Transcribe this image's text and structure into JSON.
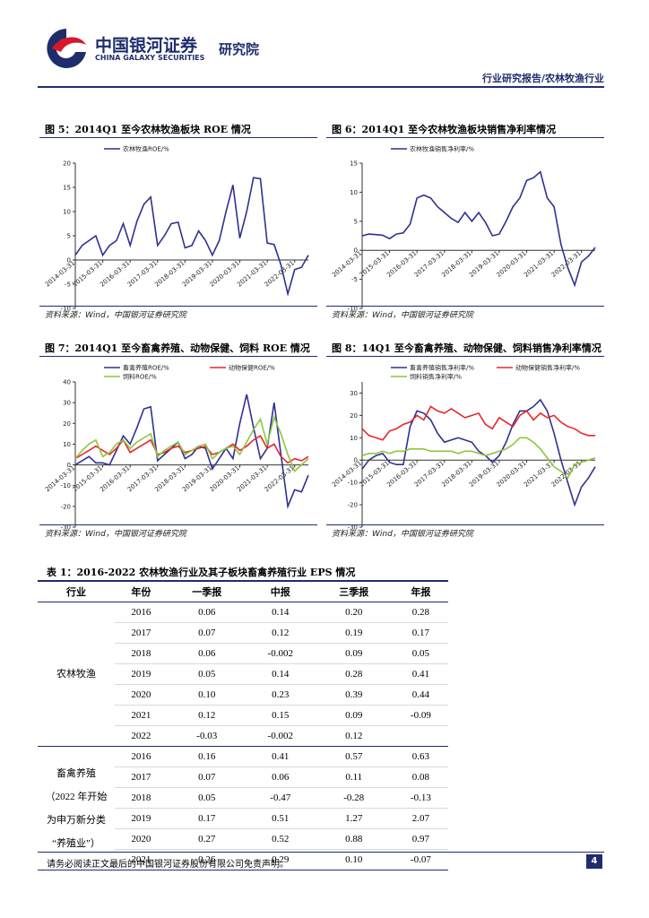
{
  "header": {
    "logo_cn": "中国银河证券",
    "logo_en": "CHINA GALAXY SECURITIES",
    "dept": "研究院",
    "section": "行业研究报告/农林牧渔行业"
  },
  "chart_data": [
    {
      "type": "line",
      "title": "图 5：2014Q1 至今农林牧渔板块 ROE 情况",
      "source": "资料来源：Wind，中国银河证券研究院",
      "categories": [
        "2014-03-31",
        null,
        null,
        null,
        "2015-03-31",
        null,
        null,
        null,
        "2016-03-31",
        null,
        null,
        null,
        "2017-03-31",
        null,
        null,
        null,
        "2018-03-31",
        null,
        null,
        null,
        "2019-03-31",
        null,
        null,
        null,
        "2020-03-31",
        null,
        null,
        null,
        "2021-03-31",
        null,
        null,
        null,
        "2022-03-31",
        null,
        null
      ],
      "series": [
        {
          "name": "农林牧渔ROE/%",
          "color": "#2e3192",
          "values": [
            1,
            3,
            4,
            5,
            1,
            3,
            4,
            7.5,
            3,
            8,
            11.5,
            13,
            3,
            5,
            7.5,
            7.8,
            2.5,
            3,
            6,
            4,
            1,
            4,
            10,
            15.5,
            4.5,
            10,
            17,
            16.8,
            3.5,
            3.2,
            -1,
            -7,
            -2,
            -1.5,
            1
          ]
        }
      ],
      "ylim": [
        -10,
        20
      ],
      "yticks": [
        -10,
        -5,
        0,
        5,
        10,
        15,
        20
      ]
    },
    {
      "type": "line",
      "title": "图 6：2014Q1 至今农林牧渔板块销售净利率情况",
      "source": "资料来源：Wind，中国银河证券研究院",
      "categories": [
        "2014-03-31",
        null,
        null,
        null,
        "2015-03-31",
        null,
        null,
        null,
        "2016-03-31",
        null,
        null,
        null,
        "2017-03-31",
        null,
        null,
        null,
        "2018-03-31",
        null,
        null,
        null,
        "2019-03-31",
        null,
        null,
        null,
        "2020-03-31",
        null,
        null,
        null,
        "2021-03-31",
        null,
        null,
        null,
        "2022-03-31",
        null,
        null
      ],
      "series": [
        {
          "name": "农林牧渔销售净利率/%",
          "color": "#2e3192",
          "values": [
            2.5,
            2.8,
            2.7,
            2.6,
            2,
            2.8,
            3,
            4.5,
            9,
            9.5,
            9,
            7.5,
            6.5,
            5.5,
            4.8,
            6.5,
            5,
            6.5,
            4.8,
            2.5,
            2.8,
            5,
            7.5,
            9,
            12,
            12.5,
            13.5,
            9,
            7.5,
            1,
            -3,
            -6,
            -2,
            -1,
            0.5
          ]
        }
      ],
      "ylim": [
        -10,
        15
      ],
      "yticks": [
        -10,
        -5,
        0,
        5,
        10,
        15
      ]
    },
    {
      "type": "line",
      "title": "图 7：2014Q1 至今畜禽养殖、动物保健、饲料 ROE 情况",
      "source": "资料来源：Wind，中国银河证券研究院",
      "categories": [
        "2014-03-31",
        null,
        null,
        null,
        "2015-03-31",
        null,
        null,
        null,
        "2016-03-31",
        null,
        null,
        null,
        "2017-03-31",
        null,
        null,
        null,
        "2018-03-31",
        null,
        null,
        null,
        "2019-03-31",
        null,
        null,
        null,
        "2020-03-31",
        null,
        null,
        null,
        "2021-03-31",
        null,
        null,
        null,
        "2022-03-31",
        null,
        null
      ],
      "series": [
        {
          "name": "畜禽养殖ROE/%",
          "color": "#2e3192",
          "values": [
            0,
            2,
            4,
            1,
            1,
            0,
            7,
            14,
            10,
            18,
            27,
            28,
            2,
            5,
            8,
            11,
            3,
            5,
            9,
            8,
            -2,
            3,
            8,
            3,
            20,
            34,
            18,
            3,
            8,
            30,
            5,
            -20,
            -12,
            -13,
            -5
          ]
        },
        {
          "name": "动物保健ROE/%",
          "color": "#e8262a",
          "values": [
            3,
            5,
            7,
            9,
            7,
            5,
            8,
            12,
            6,
            8,
            10,
            12,
            5,
            6,
            8,
            9,
            6,
            7,
            8,
            9,
            5,
            6,
            8,
            10,
            7,
            9,
            12,
            14,
            8,
            10,
            4,
            1,
            3,
            2,
            4
          ]
        },
        {
          "name": "饲料ROE/%",
          "color": "#8dc63f",
          "values": [
            3,
            7,
            10,
            12,
            4,
            6,
            10,
            12,
            8,
            11,
            13,
            15,
            4,
            7,
            9,
            11,
            5,
            7,
            9,
            10,
            3,
            6,
            8,
            9,
            5,
            11,
            17,
            22,
            10,
            23,
            15,
            5,
            -3,
            0,
            3
          ]
        }
      ],
      "ylim": [
        -30,
        40
      ],
      "yticks": [
        -30,
        -20,
        -10,
        0,
        10,
        20,
        30,
        40
      ]
    },
    {
      "type": "line",
      "title": "图 8：14Q1 至今畜禽养殖、动物保健、饲料销售净利率情况",
      "source": "资料来源：Wind，中国银河证券研究院",
      "categories": [
        "2014-03-31",
        null,
        null,
        null,
        "2015-03-31",
        null,
        null,
        null,
        "2016-03-31",
        null,
        null,
        null,
        "2017-03-31",
        null,
        null,
        null,
        "2018-03-31",
        null,
        null,
        null,
        "2019-03-31",
        null,
        null,
        null,
        "2020-03-31",
        null,
        null,
        null,
        "2021-03-31",
        null,
        null,
        null,
        "2022-03-31",
        null,
        null
      ],
      "series": [
        {
          "name": "畜禽养殖销售净利率/%",
          "color": "#2e3192",
          "values": [
            -4,
            0,
            2,
            3,
            -1,
            -2,
            -2,
            15,
            22,
            21,
            18,
            12,
            8,
            9,
            10,
            9,
            8,
            4,
            2,
            -1,
            2,
            8,
            16,
            22,
            22,
            24,
            27,
            22,
            12,
            0,
            -10,
            -20,
            -12,
            -8,
            -3
          ]
        },
        {
          "name": "动物保健销售净利率/%",
          "color": "#e8262a",
          "values": [
            14,
            11,
            10,
            9,
            13,
            14,
            16,
            17,
            20,
            18,
            24,
            22,
            21,
            23,
            21,
            19,
            20,
            21,
            16,
            14,
            19,
            17,
            15,
            20,
            22,
            18,
            21,
            19,
            20,
            17,
            15,
            14,
            12,
            11,
            11
          ]
        },
        {
          "name": "饲料销售净利率/%",
          "color": "#8dc63f",
          "values": [
            2,
            3,
            3,
            4,
            3,
            4,
            4,
            5,
            5,
            5,
            4,
            4,
            4,
            4,
            3,
            4,
            4,
            3,
            2,
            3,
            4,
            5,
            7,
            10,
            10,
            8,
            5,
            1,
            -3,
            -5,
            -8,
            -2,
            -1,
            0,
            1
          ]
        }
      ],
      "ylim": [
        -30,
        35
      ],
      "yticks": [
        -30,
        -20,
        -10,
        0,
        10,
        20,
        30
      ]
    }
  ],
  "table": {
    "title": "表 1：2016-2022 农林牧渔行业及其子板块畜禽养殖行业 EPS 情况",
    "header": [
      "行业",
      "年份",
      "一季报",
      "中报",
      "三季报",
      "年报"
    ],
    "groups": [
      {
        "label": [
          "农林牧渔"
        ],
        "rows": [
          [
            "2016",
            "0.06",
            "0.14",
            "0.20",
            "0.28"
          ],
          [
            "2017",
            "0.07",
            "0.12",
            "0.19",
            "0.17"
          ],
          [
            "2018",
            "0.06",
            "-0.002",
            "0.09",
            "0.05"
          ],
          [
            "2019",
            "0.05",
            "0.14",
            "0.28",
            "0.41"
          ],
          [
            "2020",
            "0.10",
            "0.23",
            "0.39",
            "0.44"
          ],
          [
            "2021",
            "0.12",
            "0.15",
            "0.09",
            "-0.09"
          ],
          [
            "2022",
            "-0.03",
            "-0.002",
            "0.12",
            null
          ]
        ]
      },
      {
        "label": [
          "畜禽养殖",
          "（2022 年开始",
          "为申万新分类",
          "“养殖业”）"
        ],
        "rows": [
          [
            "2016",
            "0.16",
            "0.41",
            "0.57",
            "0.63"
          ],
          [
            "2017",
            "0.07",
            "0.06",
            "0.11",
            "0.08"
          ],
          [
            "2018",
            "0.05",
            "-0.47",
            "-0.28",
            "-0.13"
          ],
          [
            "2019",
            "0.17",
            "0.51",
            "1.27",
            "2.07"
          ],
          [
            "2020",
            "0.27",
            "0.52",
            "0.88",
            "0.97"
          ],
          [
            "2021",
            "0.26",
            "0.29",
            "0.10",
            "-0.07"
          ]
        ]
      }
    ]
  },
  "footer": {
    "disclaimer": "请务必阅读正文最后的中国银河证券股份有限公司免责声明。",
    "page": "4"
  }
}
